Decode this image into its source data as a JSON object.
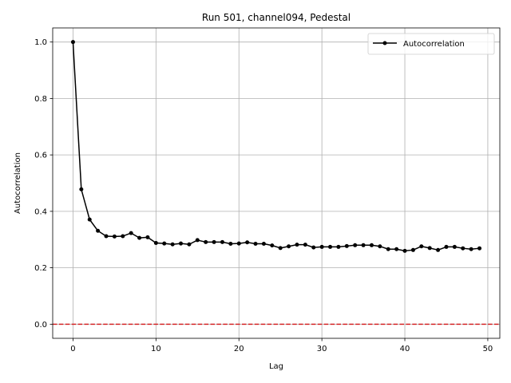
{
  "chart_data": {
    "type": "line",
    "title": "Run 501, channel094, Pedestal",
    "xlabel": "Lag",
    "ylabel": "Autocorrelation",
    "xlim": [
      -2.45,
      51.45
    ],
    "ylim": [
      -0.05,
      1.05
    ],
    "xticks": [
      0,
      10,
      20,
      30,
      40,
      50
    ],
    "yticks": [
      0.0,
      0.2,
      0.4,
      0.6,
      0.8,
      1.0
    ],
    "grid": true,
    "legend_placement": "top-right",
    "series": [
      {
        "name": "Autocorrelation",
        "color": "#000000",
        "marker": "circle",
        "x": [
          0,
          1,
          2,
          3,
          4,
          5,
          6,
          7,
          8,
          9,
          10,
          11,
          12,
          13,
          14,
          15,
          16,
          17,
          18,
          19,
          20,
          21,
          22,
          23,
          24,
          25,
          26,
          27,
          28,
          29,
          30,
          31,
          32,
          33,
          34,
          35,
          36,
          37,
          38,
          39,
          40,
          41,
          42,
          43,
          44,
          45,
          46,
          47,
          48,
          49
        ],
        "values": [
          1.0,
          0.478,
          0.371,
          0.331,
          0.312,
          0.311,
          0.312,
          0.323,
          0.306,
          0.308,
          0.288,
          0.286,
          0.283,
          0.286,
          0.283,
          0.298,
          0.291,
          0.291,
          0.291,
          0.285,
          0.286,
          0.29,
          0.285,
          0.285,
          0.279,
          0.27,
          0.276,
          0.282,
          0.282,
          0.272,
          0.274,
          0.274,
          0.274,
          0.277,
          0.28,
          0.28,
          0.28,
          0.276,
          0.266,
          0.266,
          0.26,
          0.263,
          0.276,
          0.27,
          0.263,
          0.274,
          0.274,
          0.269,
          0.266,
          0.269
        ]
      }
    ],
    "reference_line": {
      "y": 0.0,
      "color": "#d62728",
      "style": "dashed"
    }
  }
}
